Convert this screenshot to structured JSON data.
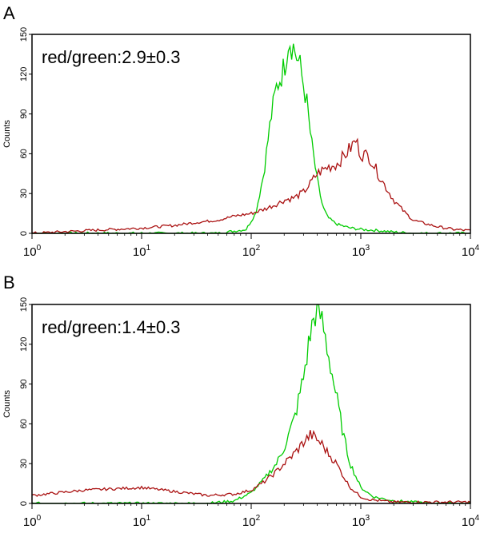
{
  "chart_data": [
    {
      "type": "line",
      "panel_label": "A",
      "annotation": "red/green:2.9±0.3",
      "ylabel": "Counts",
      "xlabel": "",
      "xscale": "log",
      "xlim": [
        1,
        10000
      ],
      "ylim": [
        0,
        150
      ],
      "yticks": [
        0,
        30,
        60,
        90,
        120,
        150
      ],
      "xticks": [
        {
          "base": "10",
          "exp": "0"
        },
        {
          "base": "10",
          "exp": "1"
        },
        {
          "base": "10",
          "exp": "2"
        },
        {
          "base": "10",
          "exp": "3"
        },
        {
          "base": "10",
          "exp": "4"
        }
      ],
      "grid": false,
      "series": [
        {
          "color": "#00cc00",
          "x": [
            1,
            10,
            50,
            90,
            110,
            130,
            150,
            170,
            200,
            220,
            250,
            280,
            320,
            350,
            400,
            450,
            500,
            600,
            800,
            1000,
            1500,
            2000,
            3000,
            5000,
            10000
          ],
          "y": [
            0,
            0,
            0,
            3,
            15,
            45,
            85,
            110,
            125,
            148,
            138,
            125,
            100,
            72,
            40,
            20,
            12,
            7,
            4,
            3,
            2,
            1,
            0,
            0,
            0
          ]
        },
        {
          "color": "#aa1111",
          "x": [
            1,
            3,
            10,
            20,
            30,
            50,
            70,
            100,
            130,
            170,
            200,
            250,
            300,
            350,
            400,
            500,
            600,
            700,
            800,
            900,
            1000,
            1200,
            1500,
            2000,
            2500,
            3000,
            4000,
            5000,
            7000,
            10000
          ],
          "y": [
            0,
            2,
            4,
            6,
            8,
            10,
            13,
            15,
            18,
            22,
            25,
            27,
            31,
            38,
            45,
            50,
            52,
            58,
            64,
            70,
            60,
            58,
            42,
            25,
            16,
            10,
            7,
            5,
            3,
            2
          ]
        }
      ]
    },
    {
      "type": "line",
      "panel_label": "B",
      "annotation": "red/green:1.4±0.3",
      "ylabel": "Counts",
      "xlabel": "",
      "xscale": "log",
      "xlim": [
        1,
        10000
      ],
      "ylim": [
        0,
        150
      ],
      "yticks": [
        0,
        30,
        60,
        90,
        120,
        150
      ],
      "xticks": [
        {
          "base": "10",
          "exp": "0"
        },
        {
          "base": "10",
          "exp": "1"
        },
        {
          "base": "10",
          "exp": "2"
        },
        {
          "base": "10",
          "exp": "3"
        },
        {
          "base": "10",
          "exp": "4"
        }
      ],
      "grid": false,
      "series": [
        {
          "color": "#00cc00",
          "x": [
            1,
            10,
            40,
            70,
            100,
            130,
            170,
            200,
            250,
            300,
            350,
            400,
            450,
            500,
            600,
            700,
            800,
            1000,
            1300,
            2000,
            3000,
            5000,
            10000
          ],
          "y": [
            0,
            0,
            0,
            2,
            8,
            18,
            30,
            42,
            65,
            95,
            130,
            150,
            135,
            115,
            80,
            50,
            30,
            12,
            5,
            2,
            1,
            0,
            0
          ]
        },
        {
          "color": "#aa1111",
          "x": [
            1,
            3,
            10,
            20,
            40,
            70,
            100,
            130,
            170,
            200,
            250,
            300,
            350,
            400,
            450,
            500,
            600,
            700,
            800,
            1000,
            1200,
            1500,
            2000,
            3000,
            5000,
            10000
          ],
          "y": [
            6,
            10,
            12,
            9,
            6,
            7,
            10,
            16,
            24,
            30,
            38,
            46,
            52,
            48,
            44,
            38,
            30,
            20,
            12,
            5,
            3,
            2,
            1,
            1,
            1,
            1
          ]
        }
      ]
    }
  ]
}
